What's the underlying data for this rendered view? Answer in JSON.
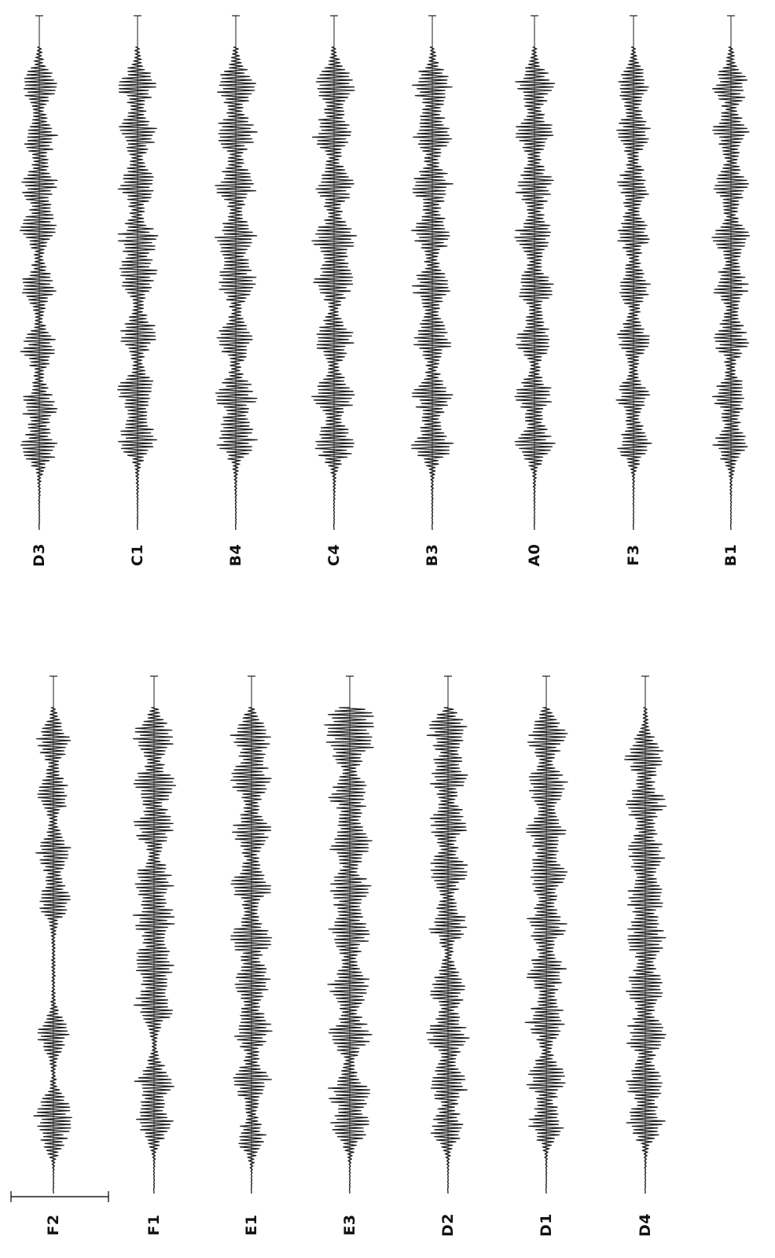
{
  "figure": {
    "orientation": "rotated-90-ccw",
    "trace_color": "#1e1e1e",
    "background": "#ffffff",
    "scale_bar": {
      "present": true
    }
  },
  "columns": [
    {
      "name": "left-column",
      "traces": [
        {
          "label": "F2",
          "bursts": [
            0.1,
            0.16,
            0.32,
            0.6,
            0.7,
            0.82,
            0.93
          ]
        },
        {
          "label": "F1",
          "bursts": [
            0.13,
            0.22,
            0.38,
            0.47,
            0.56,
            0.64,
            0.75,
            0.84,
            0.94
          ]
        },
        {
          "label": "E1",
          "bursts": [
            0.1,
            0.22,
            0.33,
            0.43,
            0.52,
            0.63,
            0.74,
            0.85,
            0.94
          ]
        },
        {
          "label": "E3",
          "bursts": [
            0.12,
            0.2,
            0.32,
            0.42,
            0.53,
            0.62,
            0.72,
            0.82,
            0.92,
            0.98
          ]
        },
        {
          "label": "D2",
          "bursts": [
            0.12,
            0.22,
            0.32,
            0.42,
            0.55,
            0.66,
            0.76,
            0.86,
            0.95
          ]
        },
        {
          "label": "D1",
          "bursts": [
            0.13,
            0.23,
            0.35,
            0.45,
            0.55,
            0.65,
            0.74,
            0.84,
            0.94
          ]
        },
        {
          "label": "D4",
          "bursts": [
            0.13,
            0.22,
            0.32,
            0.42,
            0.52,
            0.61,
            0.7,
            0.8,
            0.9
          ]
        }
      ]
    },
    {
      "name": "right-column",
      "traces": [
        {
          "label": "D3",
          "bursts": [
            0.16,
            0.25,
            0.37,
            0.5,
            0.62,
            0.71,
            0.81,
            0.92
          ]
        },
        {
          "label": "C1",
          "bursts": [
            0.18,
            0.28,
            0.4,
            0.52,
            0.6,
            0.71,
            0.82,
            0.92
          ]
        },
        {
          "label": "B4",
          "bursts": [
            0.18,
            0.27,
            0.39,
            0.51,
            0.6,
            0.71,
            0.82,
            0.92
          ]
        },
        {
          "label": "C4",
          "bursts": [
            0.17,
            0.27,
            0.39,
            0.51,
            0.6,
            0.71,
            0.82,
            0.92
          ]
        },
        {
          "label": "B3",
          "bursts": [
            0.17,
            0.27,
            0.39,
            0.5,
            0.61,
            0.71,
            0.82,
            0.92
          ]
        },
        {
          "label": "A0",
          "bursts": [
            0.17,
            0.27,
            0.39,
            0.5,
            0.61,
            0.71,
            0.82,
            0.92
          ]
        },
        {
          "label": "F3",
          "bursts": [
            0.17,
            0.27,
            0.39,
            0.5,
            0.61,
            0.71,
            0.82,
            0.92
          ]
        },
        {
          "label": "B1",
          "bursts": [
            0.17,
            0.27,
            0.39,
            0.5,
            0.6,
            0.71,
            0.82,
            0.92
          ]
        }
      ]
    }
  ]
}
